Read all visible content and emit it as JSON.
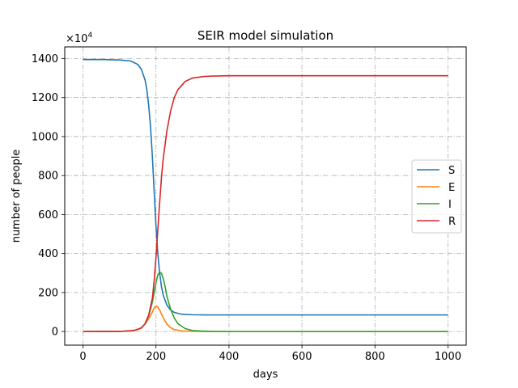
{
  "chart_data": {
    "type": "line",
    "title": "SEIR model simulation",
    "xlabel": "days",
    "ylabel": "number of people",
    "offset_text": "×10",
    "offset_exponent": "4",
    "xlim": [
      -50,
      1050
    ],
    "ylim": [
      -70,
      1460
    ],
    "xticks": [
      0,
      200,
      400,
      600,
      800,
      1000
    ],
    "yticks": [
      0,
      200,
      400,
      600,
      800,
      1000,
      1200,
      1400
    ],
    "grid": true,
    "legend_position": "center-right",
    "series": [
      {
        "name": "S",
        "color": "#1f77b4",
        "x": [
          0,
          50,
          100,
          130,
          150,
          160,
          170,
          175,
          180,
          185,
          190,
          195,
          200,
          205,
          210,
          215,
          220,
          230,
          240,
          250,
          270,
          300,
          350,
          400,
          500,
          600,
          700,
          800,
          900,
          1000
        ],
        "y": [
          1395,
          1395,
          1393,
          1388,
          1370,
          1345,
          1290,
          1240,
          1160,
          1050,
          900,
          720,
          540,
          400,
          300,
          230,
          185,
          135,
          110,
          98,
          89,
          86,
          85,
          85,
          85,
          85,
          85,
          85,
          85,
          85
        ]
      },
      {
        "name": "E",
        "color": "#ff7f0e",
        "x": [
          0,
          100,
          130,
          150,
          160,
          170,
          180,
          190,
          195,
          200,
          205,
          210,
          220,
          230,
          240,
          250,
          270,
          300,
          350,
          400,
          600,
          800,
          1000
        ],
        "y": [
          0,
          0.5,
          3,
          10,
          20,
          38,
          65,
          100,
          120,
          130,
          125,
          110,
          70,
          38,
          20,
          10,
          3,
          1,
          0,
          0,
          0,
          0,
          0
        ]
      },
      {
        "name": "I",
        "color": "#2ca02c",
        "x": [
          0,
          100,
          140,
          160,
          170,
          180,
          190,
          195,
          200,
          205,
          210,
          215,
          220,
          225,
          230,
          240,
          250,
          260,
          280,
          300,
          330,
          350,
          400,
          600,
          800,
          1000
        ],
        "y": [
          0,
          0.5,
          5,
          18,
          40,
          80,
          150,
          200,
          250,
          290,
          305,
          298,
          270,
          230,
          180,
          115,
          70,
          40,
          15,
          5,
          2,
          1,
          0,
          0,
          0,
          0
        ]
      },
      {
        "name": "R",
        "color": "#d62728",
        "x": [
          0,
          100,
          140,
          160,
          170,
          180,
          190,
          195,
          200,
          205,
          210,
          215,
          220,
          230,
          240,
          250,
          260,
          280,
          300,
          330,
          350,
          400,
          600,
          800,
          1000
        ],
        "y": [
          0,
          0.5,
          5,
          18,
          40,
          85,
          170,
          260,
          380,
          520,
          660,
          790,
          890,
          1030,
          1130,
          1200,
          1240,
          1283,
          1300,
          1308,
          1310,
          1312,
          1312,
          1312,
          1312
        ]
      }
    ]
  }
}
